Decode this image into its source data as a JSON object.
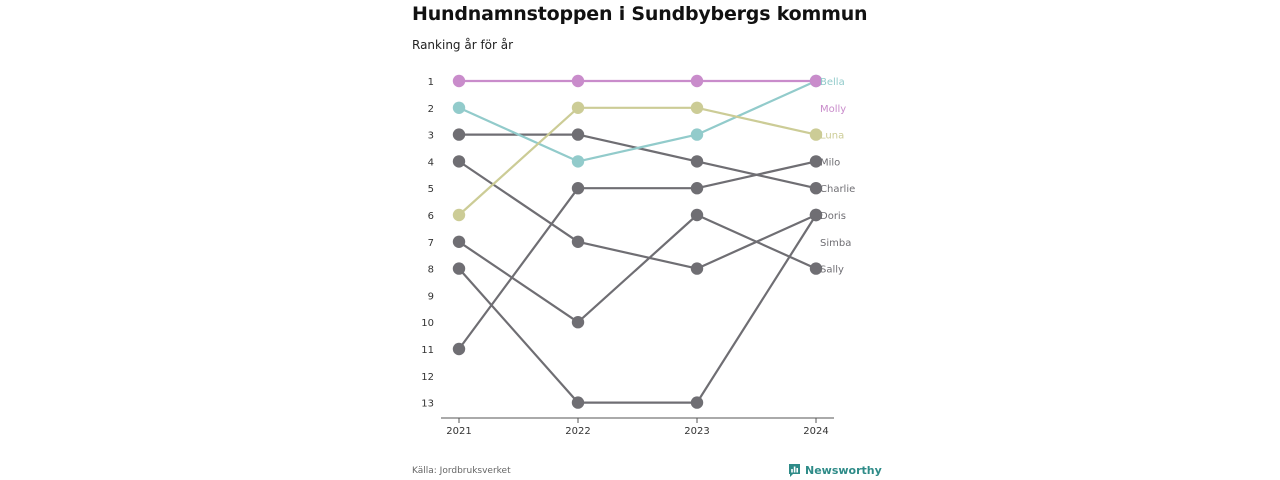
{
  "chart_data": {
    "type": "line",
    "title": "Hundnamnstoppen i Sundbybergs kommun",
    "subtitle": "Ranking år för år",
    "x": [
      "2021",
      "2022",
      "2023",
      "2024"
    ],
    "y_ticks": [
      "1",
      "2",
      "3",
      "4",
      "5",
      "6",
      "7",
      "8",
      "9",
      "10",
      "11",
      "12",
      "13"
    ],
    "ylim": [
      1,
      13
    ],
    "y_reversed": true,
    "grid": false,
    "series": [
      {
        "name": "Bella",
        "values": [
          2,
          4,
          3,
          1
        ],
        "color": "#92cbcb",
        "label_rank": 1
      },
      {
        "name": "Molly",
        "values": [
          1,
          1,
          1,
          1
        ],
        "color": "#c98ccb",
        "label_rank": 2
      },
      {
        "name": "Luna",
        "values": [
          6,
          2,
          2,
          3
        ],
        "color": "#cccc96",
        "label_rank": 3
      },
      {
        "name": "Milo",
        "values": [
          11,
          5,
          5,
          4
        ],
        "color": "#6f6e73",
        "label_rank": 4
      },
      {
        "name": "Charlie",
        "values": [
          3,
          3,
          4,
          5
        ],
        "color": "#6f6e73",
        "label_rank": 5
      },
      {
        "name": "Doris",
        "values": [
          8,
          13,
          13,
          6
        ],
        "color": "#6f6e73",
        "label_rank": 6
      },
      {
        "name": "Simba",
        "values": [
          4,
          7,
          8,
          6
        ],
        "color": "#6f6e73",
        "label_rank": 7
      },
      {
        "name": "Sally",
        "values": [
          7,
          10,
          6,
          8
        ],
        "color": "#6f6e73",
        "label_rank": 8
      }
    ]
  },
  "footer": {
    "source": "Källa: Jordbruksverket",
    "brand": "Newsworthy",
    "brand_color": "#2e8b88",
    "brand_icon": "bar-chart-icon"
  }
}
